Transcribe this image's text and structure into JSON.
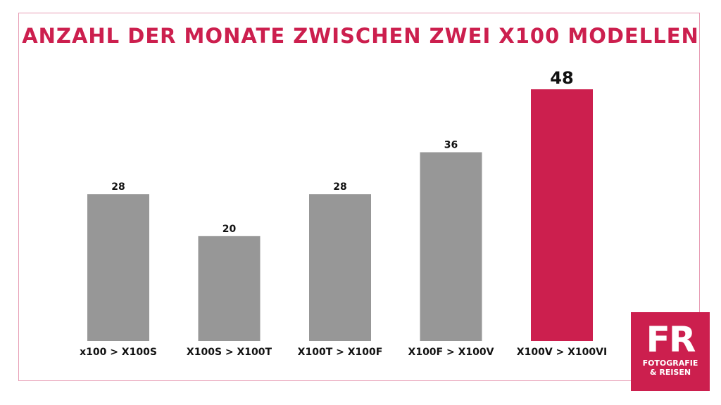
{
  "chart_data": {
    "type": "bar",
    "title": "ANZAHL DER MONATE ZWISCHEN ZWEI X100 MODELLEN",
    "categories": [
      "x100 > X100S",
      "X100S > X100T",
      "X100T > X100F",
      "X100F > X100V",
      "X100V > X100VI"
    ],
    "values": [
      28,
      20,
      28,
      36,
      48
    ],
    "ylim": [
      0,
      48
    ],
    "grid": false,
    "colors": {
      "default_bar": "#979797",
      "highlight_bar": "#cc1f4e"
    },
    "highlight_index": 4
  },
  "logo": {
    "mark": "FR",
    "line1": "FOTOGRAFIE",
    "line2": "& REISEN"
  }
}
